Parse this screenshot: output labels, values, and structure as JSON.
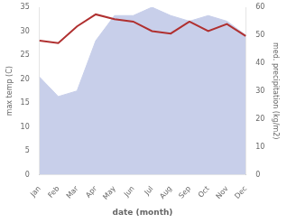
{
  "chart_data": {
    "type": "line",
    "categories": [
      "Jan",
      "Feb",
      "Mar",
      "Apr",
      "May",
      "Jun",
      "Jul",
      "Aug",
      "Sep",
      "Oct",
      "Nov",
      "Dec"
    ],
    "xlabel": "date (month)",
    "ylabel": "max temp (C)",
    "y2label": "med. precipitation (kg/m2)",
    "series": [
      {
        "type": "area",
        "axis": "y2",
        "color": "#c8cfea",
        "values": [
          35,
          28,
          30,
          48,
          57,
          57,
          60,
          57,
          55,
          57,
          55,
          50
        ]
      },
      {
        "type": "line",
        "color": "#b03030",
        "values": [
          28.0,
          27.5,
          31.0,
          33.5,
          32.5,
          32.0,
          30.0,
          29.5,
          32.0,
          30.0,
          31.5,
          29.0
        ]
      }
    ],
    "ylim": [
      0,
      35
    ],
    "yticks": [
      0,
      5,
      10,
      15,
      20,
      25,
      30,
      35
    ],
    "y2lim": [
      0,
      60
    ],
    "y2ticks": [
      0,
      10,
      20,
      30,
      40,
      50,
      60
    ],
    "grid": false
  }
}
